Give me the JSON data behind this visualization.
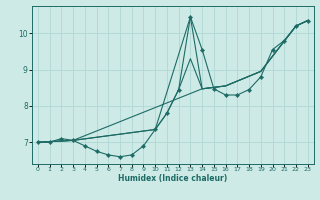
{
  "xlabel": "Humidex (Indice chaleur)",
  "bg_color": "#cdeae7",
  "line_color": "#1e6b65",
  "grid_color": "#b0d8d4",
  "xlim": [
    -0.5,
    23.5
  ],
  "ylim": [
    6.4,
    10.75
  ],
  "yticks": [
    7,
    8,
    9,
    10
  ],
  "xticks": [
    0,
    1,
    2,
    3,
    4,
    5,
    6,
    7,
    8,
    9,
    10,
    11,
    12,
    13,
    14,
    15,
    16,
    17,
    18,
    19,
    20,
    21,
    22,
    23
  ],
  "lines": [
    {
      "x": [
        0,
        1,
        2,
        3,
        4,
        5,
        6,
        7,
        8,
        9,
        10,
        11,
        12,
        13,
        14,
        15,
        16,
        17,
        18,
        19,
        20,
        21,
        22,
        23
      ],
      "y": [
        7.0,
        7.0,
        7.1,
        7.05,
        6.9,
        6.75,
        6.65,
        6.6,
        6.65,
        6.9,
        7.35,
        7.8,
        8.45,
        10.45,
        9.55,
        8.47,
        8.3,
        8.3,
        8.45,
        8.8,
        9.55,
        9.8,
        10.2,
        10.35
      ],
      "has_markers": true
    },
    {
      "x": [
        0,
        3,
        14,
        16,
        19,
        22,
        23
      ],
      "y": [
        7.0,
        7.05,
        8.47,
        8.55,
        8.95,
        10.2,
        10.35
      ],
      "has_markers": false
    },
    {
      "x": [
        0,
        3,
        10,
        13,
        14,
        16,
        19,
        22,
        23
      ],
      "y": [
        7.0,
        7.05,
        7.35,
        10.45,
        8.47,
        8.55,
        8.95,
        10.2,
        10.35
      ],
      "has_markers": false
    },
    {
      "x": [
        0,
        3,
        10,
        11,
        12,
        13,
        14,
        16,
        19,
        22,
        23
      ],
      "y": [
        7.0,
        7.05,
        7.35,
        7.8,
        8.45,
        9.3,
        8.47,
        8.55,
        8.95,
        10.2,
        10.35
      ],
      "has_markers": false
    }
  ]
}
